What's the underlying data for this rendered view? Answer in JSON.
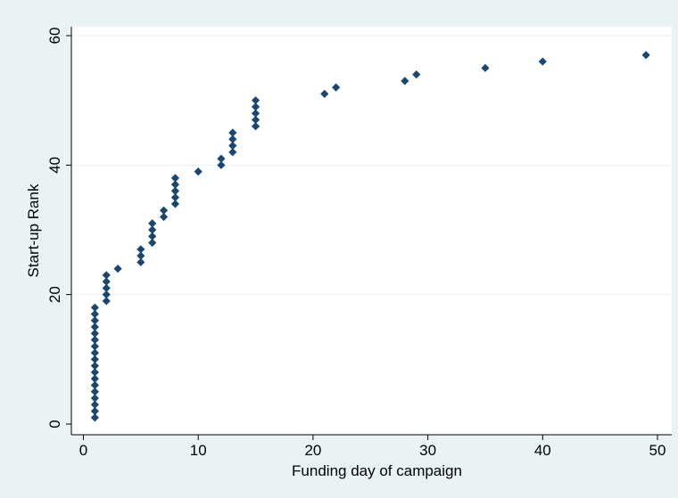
{
  "chart_data": {
    "type": "scatter",
    "title": "",
    "xlabel": "Funding day of campaign",
    "ylabel": "Start-up Rank",
    "xlim": [
      0,
      50
    ],
    "ylim": [
      0,
      60
    ],
    "x_ticks": [
      0,
      10,
      20,
      30,
      40,
      50
    ],
    "y_ticks": [
      0,
      20,
      40,
      60
    ],
    "x_tick_labels": [
      "0",
      "10",
      "20",
      "30",
      "40",
      "50"
    ],
    "y_tick_labels": [
      "0",
      "20",
      "40",
      "60"
    ],
    "grid": "horizontal",
    "marker": "diamond",
    "colors": {
      "background": "#eaf2f3",
      "plot_area": "#ffffff",
      "grid": "#eaf2f3",
      "marker": "#1a476f"
    },
    "points": [
      {
        "x": 1,
        "y": 1
      },
      {
        "x": 1,
        "y": 2
      },
      {
        "x": 1,
        "y": 3
      },
      {
        "x": 1,
        "y": 4
      },
      {
        "x": 1,
        "y": 5
      },
      {
        "x": 1,
        "y": 6
      },
      {
        "x": 1,
        "y": 7
      },
      {
        "x": 1,
        "y": 8
      },
      {
        "x": 1,
        "y": 9
      },
      {
        "x": 1,
        "y": 10
      },
      {
        "x": 1,
        "y": 11
      },
      {
        "x": 1,
        "y": 12
      },
      {
        "x": 1,
        "y": 13
      },
      {
        "x": 1,
        "y": 14
      },
      {
        "x": 1,
        "y": 15
      },
      {
        "x": 1,
        "y": 16
      },
      {
        "x": 1,
        "y": 17
      },
      {
        "x": 1,
        "y": 18
      },
      {
        "x": 2,
        "y": 19
      },
      {
        "x": 2,
        "y": 20
      },
      {
        "x": 2,
        "y": 21
      },
      {
        "x": 2,
        "y": 22
      },
      {
        "x": 2,
        "y": 23
      },
      {
        "x": 3,
        "y": 24
      },
      {
        "x": 5,
        "y": 25
      },
      {
        "x": 5,
        "y": 26
      },
      {
        "x": 5,
        "y": 27
      },
      {
        "x": 6,
        "y": 28
      },
      {
        "x": 6,
        "y": 29
      },
      {
        "x": 6,
        "y": 30
      },
      {
        "x": 6,
        "y": 31
      },
      {
        "x": 7,
        "y": 32
      },
      {
        "x": 7,
        "y": 33
      },
      {
        "x": 8,
        "y": 34
      },
      {
        "x": 8,
        "y": 35
      },
      {
        "x": 8,
        "y": 36
      },
      {
        "x": 8,
        "y": 37
      },
      {
        "x": 8,
        "y": 38
      },
      {
        "x": 10,
        "y": 39
      },
      {
        "x": 12,
        "y": 40
      },
      {
        "x": 12,
        "y": 41
      },
      {
        "x": 13,
        "y": 42
      },
      {
        "x": 13,
        "y": 43
      },
      {
        "x": 13,
        "y": 44
      },
      {
        "x": 13,
        "y": 45
      },
      {
        "x": 15,
        "y": 46
      },
      {
        "x": 15,
        "y": 47
      },
      {
        "x": 15,
        "y": 48
      },
      {
        "x": 15,
        "y": 49
      },
      {
        "x": 15,
        "y": 50
      },
      {
        "x": 21,
        "y": 51
      },
      {
        "x": 22,
        "y": 52
      },
      {
        "x": 28,
        "y": 53
      },
      {
        "x": 29,
        "y": 54
      },
      {
        "x": 35,
        "y": 55
      },
      {
        "x": 40,
        "y": 56
      },
      {
        "x": 49,
        "y": 57
      }
    ]
  }
}
